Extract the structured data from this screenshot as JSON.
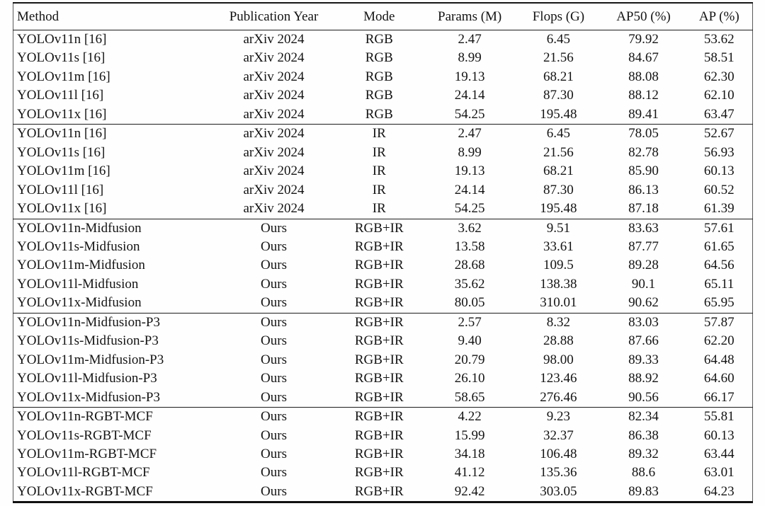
{
  "colors": {
    "background": "#fefefe",
    "text": "#141414",
    "rule": "#1c1c1c"
  },
  "table": {
    "headers": [
      "Method",
      "Publication Year",
      "Mode",
      "Params (M)",
      "Flops (G)",
      "AP50 (%)",
      "AP (%)"
    ],
    "groups": [
      {
        "rows": [
          [
            "YOLOv11n [16]",
            "arXiv 2024",
            "RGB",
            "2.47",
            "6.45",
            "79.92",
            "53.62"
          ],
          [
            "YOLOv11s [16]",
            "arXiv 2024",
            "RGB",
            "8.99",
            "21.56",
            "84.67",
            "58.51"
          ],
          [
            "YOLOv11m [16]",
            "arXiv 2024",
            "RGB",
            "19.13",
            "68.21",
            "88.08",
            "62.30"
          ],
          [
            "YOLOv11l [16]",
            "arXiv 2024",
            "RGB",
            "24.14",
            "87.30",
            "88.12",
            "62.10"
          ],
          [
            "YOLOv11x [16]",
            "arXiv 2024",
            "RGB",
            "54.25",
            "195.48",
            "89.41",
            "63.47"
          ]
        ]
      },
      {
        "rows": [
          [
            "YOLOv11n [16]",
            "arXiv 2024",
            "IR",
            "2.47",
            "6.45",
            "78.05",
            "52.67"
          ],
          [
            "YOLOv11s [16]",
            "arXiv 2024",
            "IR",
            "8.99",
            "21.56",
            "82.78",
            "56.93"
          ],
          [
            "YOLOv11m [16]",
            "arXiv 2024",
            "IR",
            "19.13",
            "68.21",
            "85.90",
            "60.13"
          ],
          [
            "YOLOv11l [16]",
            "arXiv 2024",
            "IR",
            "24.14",
            "87.30",
            "86.13",
            "60.52"
          ],
          [
            "YOLOv11x [16]",
            "arXiv 2024",
            "IR",
            "54.25",
            "195.48",
            "87.18",
            "61.39"
          ]
        ]
      },
      {
        "rows": [
          [
            "YOLOv11n-Midfusion",
            "Ours",
            "RGB+IR",
            "3.62",
            "9.51",
            "83.63",
            "57.61"
          ],
          [
            "YOLOv11s-Midfusion",
            "Ours",
            "RGB+IR",
            "13.58",
            "33.61",
            "87.77",
            "61.65"
          ],
          [
            "YOLOv11m-Midfusion",
            "Ours",
            "RGB+IR",
            "28.68",
            "109.5",
            "89.28",
            "64.56"
          ],
          [
            "YOLOv11l-Midfusion",
            "Ours",
            "RGB+IR",
            "35.62",
            "138.38",
            "90.1",
            "65.11"
          ],
          [
            "YOLOv11x-Midfusion",
            "Ours",
            "RGB+IR",
            "80.05",
            "310.01",
            "90.62",
            "65.95"
          ]
        ]
      },
      {
        "rows": [
          [
            "YOLOv11n-Midfusion-P3",
            "Ours",
            "RGB+IR",
            "2.57",
            "8.32",
            "83.03",
            "57.87"
          ],
          [
            "YOLOv11s-Midfusion-P3",
            "Ours",
            "RGB+IR",
            "9.40",
            "28.88",
            "87.66",
            "62.20"
          ],
          [
            "YOLOv11m-Midfusion-P3",
            "Ours",
            "RGB+IR",
            "20.79",
            "98.00",
            "89.33",
            "64.48"
          ],
          [
            "YOLOv11l-Midfusion-P3",
            "Ours",
            "RGB+IR",
            "26.10",
            "123.46",
            "88.92",
            "64.60"
          ],
          [
            "YOLOv11x-Midfusion-P3",
            "Ours",
            "RGB+IR",
            "58.65",
            "276.46",
            "90.56",
            "66.17"
          ]
        ]
      },
      {
        "rows": [
          [
            "YOLOv11n-RGBT-MCF",
            "Ours",
            "RGB+IR",
            "4.22",
            "9.23",
            "82.34",
            "55.81"
          ],
          [
            "YOLOv11s-RGBT-MCF",
            "Ours",
            "RGB+IR",
            "15.99",
            "32.37",
            "86.38",
            "60.13"
          ],
          [
            "YOLOv11m-RGBT-MCF",
            "Ours",
            "RGB+IR",
            "34.18",
            "106.48",
            "89.32",
            "63.44"
          ],
          [
            "YOLOv11l-RGBT-MCF",
            "Ours",
            "RGB+IR",
            "41.12",
            "135.36",
            "88.6",
            "63.01"
          ],
          [
            "YOLOv11x-RGBT-MCF",
            "Ours",
            "RGB+IR",
            "92.42",
            "303.05",
            "89.83",
            "64.23"
          ]
        ]
      }
    ]
  }
}
